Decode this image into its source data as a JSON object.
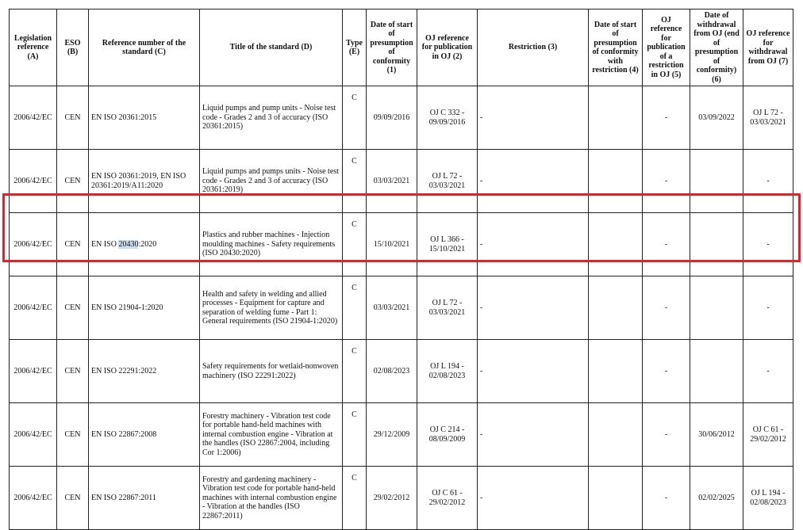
{
  "headers": [
    "Legislation reference (A)",
    "ESO (B)",
    "Reference number of the standard (C)",
    "Title of the standard (D)",
    "Type (E)",
    "Date of start of presumption of conformity (1)",
    "OJ reference for publication in OJ (2)",
    "Restriction (3)",
    "Date of start of presumption of conformity with restriction (4)",
    "OJ reference for publication of a restriction in OJ (5)",
    "Date of withdrawal from OJ (end of presumption of conformity) (6)",
    "OJ reference for withdrawal from OJ (7)"
  ],
  "rows": [
    {
      "leg": "2006/42/EC",
      "eso": "CEN",
      "ref": "EN ISO 20361:2015",
      "title": "Liquid pumps and pump units - Noise test code - Grades 2 and 3 of accuracy (ISO 20361:2015)",
      "type": "C",
      "date": "09/09/2016",
      "oj": "OJ C 332 - 09/09/2016",
      "restr": "-",
      "d4": "",
      "oj5": "-",
      "d6": "03/09/2022",
      "oj7": "OJ L 72 - 03/03/2021"
    },
    {
      "leg": "2006/42/EC",
      "eso": "CEN",
      "ref": "EN ISO 20361:2019, EN ISO 20361:2019/A11:2020",
      "title": "Liquid pumps and pumps units - Noise test code - Grades 2 and 3 of accuracy (ISO 20361:2019)",
      "type": "C",
      "date": "03/03/2021",
      "oj": "OJ L 72 - 03/03/2021",
      "restr": "-",
      "d4": "",
      "oj5": "-",
      "d6": "",
      "oj7": "-"
    },
    {
      "leg": "2006/42/EC",
      "eso": "CEN",
      "ref_pre": "EN ISO ",
      "ref_hl": "20430",
      "ref_post": ":2020",
      "title": "Plastics and rubber machines - Injection moulding machines - Safety requirements (ISO 20430:2020)",
      "type": "C",
      "date": "15/10/2021",
      "oj": "OJ L 366 - 15/10/2021",
      "restr": "-",
      "d4": "",
      "oj5": "-",
      "d6": "",
      "oj7": "-"
    },
    {
      "leg": "2006/42/EC",
      "eso": "CEN",
      "ref": "EN ISO 21904-1:2020",
      "title": "Health and safety in welding and allied processes - Equipment for capture and separation of welding fume - Part 1: General requirements (ISO 21904-1:2020)",
      "type": "C",
      "date": "03/03/2021",
      "oj": "OJ L 72 - 03/03/2021",
      "restr": "-",
      "d4": "",
      "oj5": "-",
      "d6": "",
      "oj7": "-"
    },
    {
      "leg": "2006/42/EC",
      "eso": "CEN",
      "ref": "EN ISO 22291:2022",
      "title": "Safety requirements for wetlaid-nonwoven machinery (ISO 22291:2022)",
      "type": "C",
      "date": "02/08/2023",
      "oj": "OJ L 194 - 02/08/2023",
      "restr": "-",
      "d4": "",
      "oj5": "-",
      "d6": "",
      "oj7": "-"
    },
    {
      "leg": "2006/42/EC",
      "eso": "CEN",
      "ref": "EN ISO 22867:2008",
      "title": "Forestry machinery - Vibration test code for portable hand-held machines with internal combustion engine - Vibration at the handles (ISO 22867:2004, including Cor 1:2006)",
      "type": "C",
      "date": "29/12/2009",
      "oj": "OJ C 214 - 08/09/2009",
      "restr": "-",
      "d4": "",
      "oj5": "-",
      "d6": "30/06/2012",
      "oj7": "OJ C 61 - 29/02/2012"
    },
    {
      "leg": "2006/42/EC",
      "eso": "CEN",
      "ref": "EN ISO 22867:2011",
      "title": "Forestry and gardening machinery - Vibration test code for portable hand-held machines with internal combustion engine - Vibration at the handles (ISO 22867:2011)",
      "type": "C",
      "date": "29/02/2012",
      "oj": "OJ C 61 - 29/02/2012",
      "restr": "-",
      "d4": "",
      "oj5": "-",
      "d6": "02/02/2025",
      "oj7": "OJ L 194 - 02/08/2023"
    }
  ],
  "highlight_color": "#d7282f"
}
